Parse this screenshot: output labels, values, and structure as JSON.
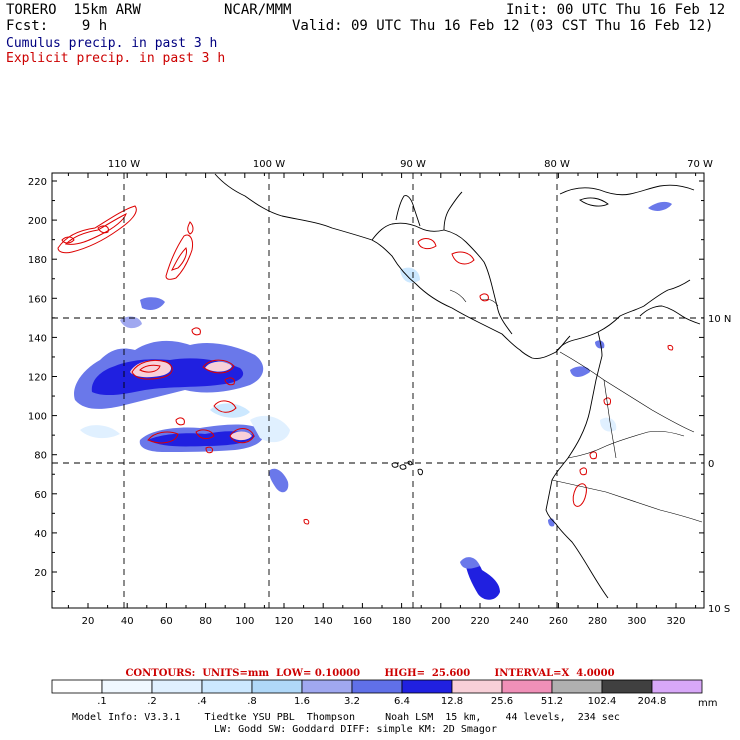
{
  "header": {
    "model": "TORERO  15km ARW",
    "org": "NCAR/MMM",
    "init": "Init: 00 UTC Thu 16 Feb 12",
    "fcst": "Fcst:    9 h",
    "valid": "Valid: 09 UTC Thu 16 Feb 12 (03 CST Thu 16 Feb 12)",
    "field1": "Cumulus precip. in past 3 h",
    "field2": "Explicit precip. in past 3 h",
    "field1_color": "#000080",
    "field2_color": "#cc0000"
  },
  "map": {
    "x_ticks": [
      "20",
      "40",
      "60",
      "80",
      "100",
      "120",
      "140",
      "160",
      "180",
      "200",
      "220",
      "240",
      "260",
      "280",
      "300",
      "320"
    ],
    "y_ticks": [
      "20",
      "40",
      "60",
      "80",
      "100",
      "120",
      "140",
      "160",
      "180",
      "200",
      "220"
    ],
    "lon_labels": [
      "110 W",
      "100 W",
      "90 W",
      "80 W",
      "70 W"
    ],
    "lat_labels": [
      "10 N",
      "0",
      "10 S"
    ]
  },
  "contours_line": "CONTOURS:  UNITS=mm  LOW= 0.10000       HIGH=  25.600       INTERVAL=X  4.0000",
  "colorbar": {
    "labels": [
      ".1",
      ".2",
      ".4",
      ".8",
      "1.6",
      "3.2",
      "6.4",
      "12.8",
      "25.6",
      "51.2",
      "102.4",
      "204.8"
    ],
    "colors": [
      "#ffffff",
      "#f0f8ff",
      "#e0f0ff",
      "#cce8ff",
      "#b0d8f8",
      "#a0a8f0",
      "#6070e8",
      "#2020e0",
      "#f8d0d8",
      "#f090b8",
      "#b0b0b0",
      "#404040",
      "#d8a8f8"
    ],
    "unit": "mm"
  },
  "footer": {
    "line1": "Model Info: V3.3.1    Tiedtke YSU PBL  Thompson     Noah LSM  15 km,    44 levels,  234 sec",
    "line2": "LW: Godd SW: Goddard DIFF: simple KM: 2D Smagor"
  }
}
